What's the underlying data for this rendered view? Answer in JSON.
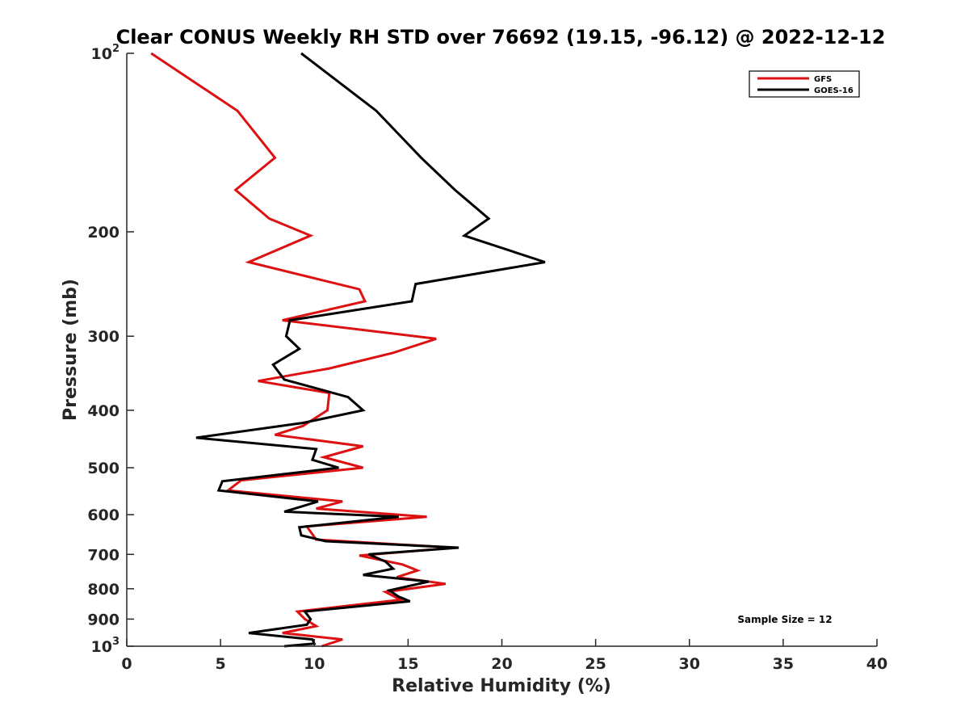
{
  "chart_data": {
    "type": "line",
    "title": "Clear CONUS Weekly RH STD over 76692 (19.15, -96.12) @ 2022-12-12",
    "xlabel": "Relative Humidity (%)",
    "ylabel": "Pressure (mb)",
    "xlim": [
      0,
      40
    ],
    "ylim": [
      100,
      1000
    ],
    "yscale": "log",
    "y_reversed": true,
    "x_ticks": [
      0,
      5,
      10,
      15,
      20,
      25,
      30,
      35,
      40
    ],
    "x_tick_labels": [
      "0",
      "5",
      "10",
      "15",
      "20",
      "25",
      "30",
      "35",
      "40"
    ],
    "y_ticks": [
      100,
      200,
      300,
      400,
      500,
      600,
      700,
      800,
      900,
      1000
    ],
    "y_tick_labels": [
      {
        "base": "10",
        "exp": "2"
      },
      {
        "base": "200",
        "exp": ""
      },
      {
        "base": "300",
        "exp": ""
      },
      {
        "base": "400",
        "exp": ""
      },
      {
        "base": "500",
        "exp": ""
      },
      {
        "base": "600",
        "exp": ""
      },
      {
        "base": "700",
        "exp": ""
      },
      {
        "base": "800",
        "exp": ""
      },
      {
        "base": "900",
        "exp": ""
      },
      {
        "base": "10",
        "exp": "3"
      }
    ],
    "legend_position": "top-right",
    "annotation": "Sample Size = 12",
    "series": [
      {
        "name": "GFS",
        "color": "#dd1111",
        "points": [
          [
            1.3,
            100
          ],
          [
            5.9,
            125
          ],
          [
            7.9,
            150
          ],
          [
            5.8,
            170
          ],
          [
            7.6,
            190
          ],
          [
            9.8,
            203
          ],
          [
            6.5,
            225
          ],
          [
            12.4,
            250
          ],
          [
            12.7,
            262
          ],
          [
            8.3,
            282
          ],
          [
            16.5,
            303
          ],
          [
            14.2,
            320
          ],
          [
            10.8,
            340
          ],
          [
            7.0,
            357
          ],
          [
            10.8,
            374
          ],
          [
            10.7,
            400
          ],
          [
            9.4,
            425
          ],
          [
            7.9,
            440
          ],
          [
            12.6,
            460
          ],
          [
            10.5,
            480
          ],
          [
            12.6,
            500
          ],
          [
            6.1,
            525
          ],
          [
            5.4,
            546
          ],
          [
            11.5,
            570
          ],
          [
            10.1,
            586
          ],
          [
            16.0,
            605
          ],
          [
            9.6,
            628
          ],
          [
            10.1,
            661
          ],
          [
            17.5,
            682
          ],
          [
            12.4,
            703
          ],
          [
            14.7,
            728
          ],
          [
            15.5,
            745
          ],
          [
            14.4,
            765
          ],
          [
            17.0,
            785
          ],
          [
            13.8,
            810
          ],
          [
            14.6,
            835
          ],
          [
            9.1,
            874
          ],
          [
            9.5,
            900
          ],
          [
            10.1,
            925
          ],
          [
            8.3,
            950
          ],
          [
            11.5,
            974
          ],
          [
            10.4,
            1000
          ]
        ]
      },
      {
        "name": "GOES-16",
        "color": "#000000",
        "points": [
          [
            9.3,
            100
          ],
          [
            13.3,
            125
          ],
          [
            15.7,
            150
          ],
          [
            17.5,
            170
          ],
          [
            19.3,
            190
          ],
          [
            18.0,
            203
          ],
          [
            22.3,
            225
          ],
          [
            15.4,
            245
          ],
          [
            15.2,
            262
          ],
          [
            8.7,
            282
          ],
          [
            8.5,
            300
          ],
          [
            9.2,
            315
          ],
          [
            7.8,
            335
          ],
          [
            8.4,
            355
          ],
          [
            11.8,
            380
          ],
          [
            12.6,
            400
          ],
          [
            9.4,
            420
          ],
          [
            3.7,
            445
          ],
          [
            10.1,
            465
          ],
          [
            9.9,
            485
          ],
          [
            11.3,
            500
          ],
          [
            5.1,
            527
          ],
          [
            4.9,
            546
          ],
          [
            10.2,
            570
          ],
          [
            8.4,
            593
          ],
          [
            14.5,
            605
          ],
          [
            9.2,
            630
          ],
          [
            9.3,
            650
          ],
          [
            10.6,
            665
          ],
          [
            17.7,
            682
          ],
          [
            12.9,
            700
          ],
          [
            13.8,
            720
          ],
          [
            14.2,
            740
          ],
          [
            12.6,
            758
          ],
          [
            16.1,
            778
          ],
          [
            14.0,
            805
          ],
          [
            14.5,
            825
          ],
          [
            15.1,
            840
          ],
          [
            9.5,
            874
          ],
          [
            9.8,
            900
          ],
          [
            9.6,
            920
          ],
          [
            6.5,
            950
          ],
          [
            9.9,
            974
          ],
          [
            10.0,
            990
          ],
          [
            8.4,
            1000
          ]
        ]
      }
    ]
  }
}
